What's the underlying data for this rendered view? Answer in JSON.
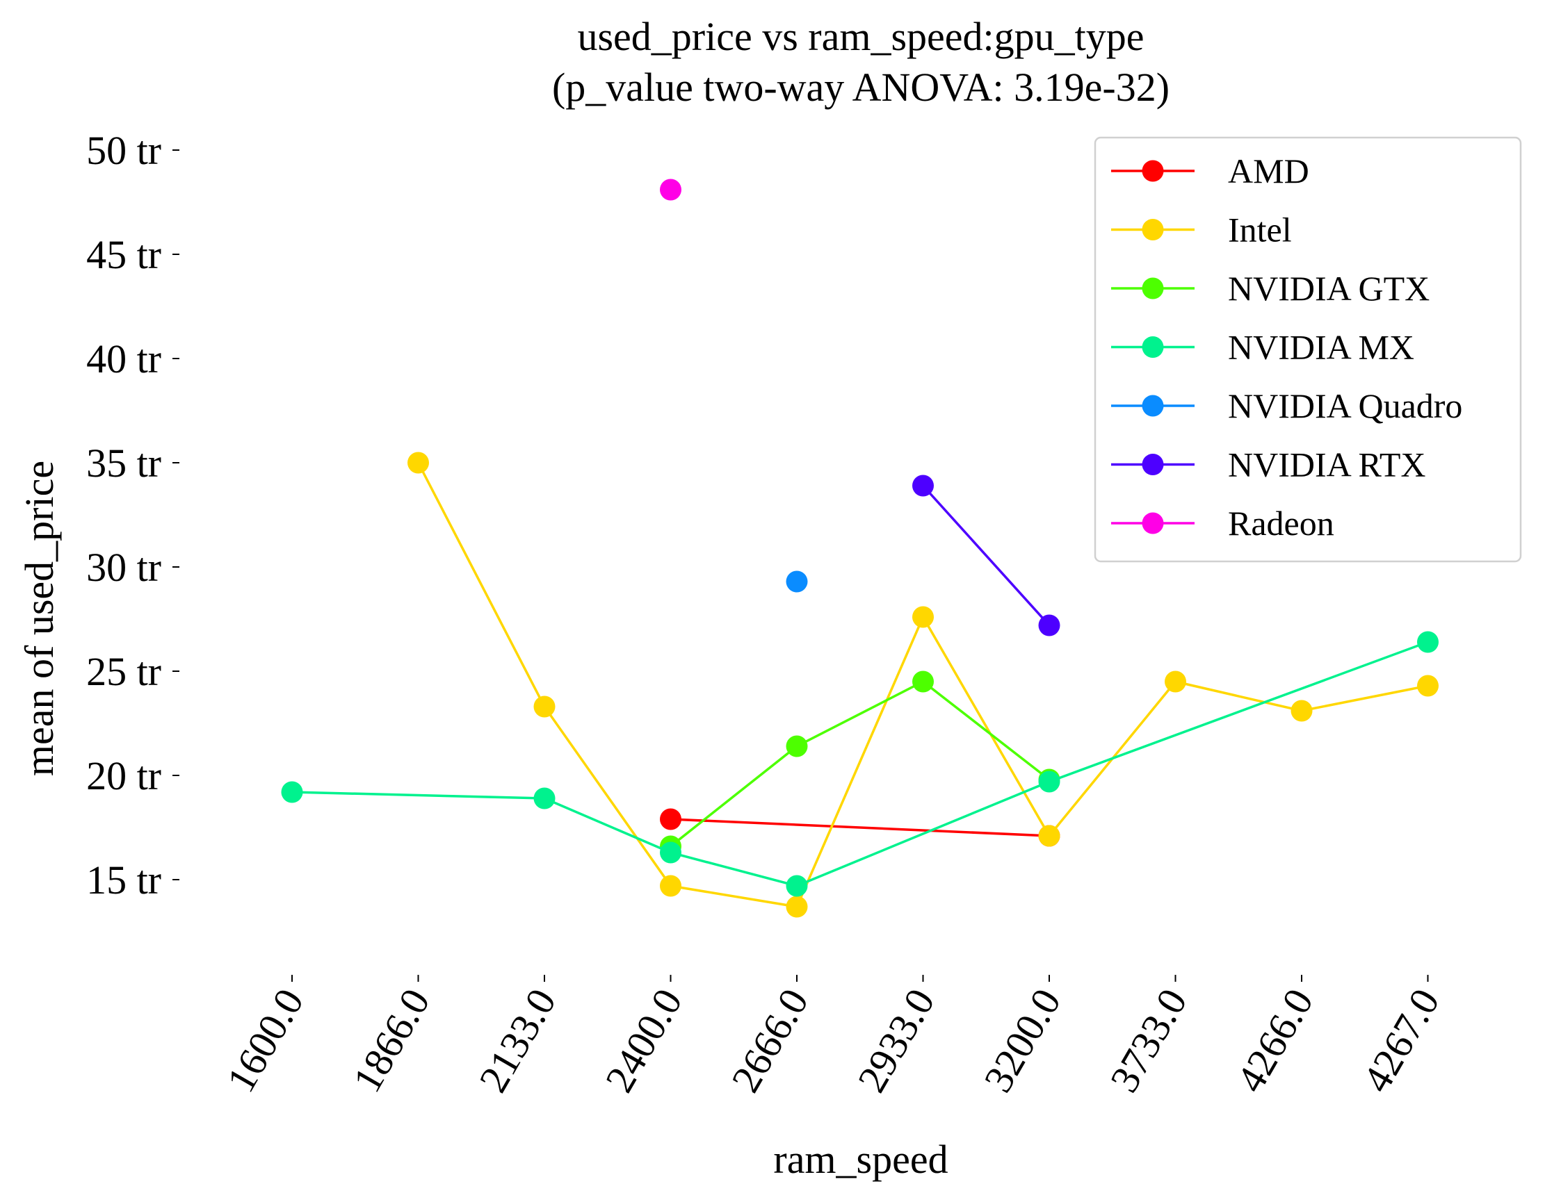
{
  "chart_data": {
    "type": "line",
    "title": "used_price vs ram_speed:gpu_type",
    "subtitle": "(p_value two-way ANOVA: 3.19e-32)",
    "xlabel": "ram_speed",
    "ylabel": "mean of used_price",
    "categories": [
      "1600.0",
      "1866.0",
      "2133.0",
      "2400.0",
      "2666.0",
      "2933.0",
      "3200.0",
      "3733.0",
      "4266.0",
      "4267.0"
    ],
    "ylim": [
      11000000,
      51000000
    ],
    "yticks": [
      15000000,
      20000000,
      25000000,
      30000000,
      35000000,
      40000000,
      45000000,
      50000000
    ],
    "ytick_labels": [
      "15 tr",
      "20 tr",
      "25 tr",
      "30 tr",
      "35 tr",
      "40 tr",
      "45 tr",
      "50 tr"
    ],
    "grid": false,
    "legend_position": "top-right",
    "series": [
      {
        "name": "AMD",
        "color": "#ff0000",
        "points": [
          [
            3,
            17900000
          ],
          [
            6,
            17100000
          ]
        ]
      },
      {
        "name": "Intel",
        "color": "#ffd700",
        "points": [
          [
            1,
            35000000
          ],
          [
            2,
            23300000
          ],
          [
            3,
            14700000
          ],
          [
            4,
            13700000
          ],
          [
            5,
            27600000
          ],
          [
            6,
            17100000
          ],
          [
            7,
            24500000
          ],
          [
            8,
            23100000
          ],
          [
            9,
            24300000
          ]
        ]
      },
      {
        "name": "NVIDIA GTX",
        "color": "#4dff00",
        "points": [
          [
            3,
            16600000
          ],
          [
            4,
            21400000
          ],
          [
            5,
            24500000
          ],
          [
            6,
            19800000
          ]
        ]
      },
      {
        "name": "NVIDIA MX",
        "color": "#00f28e",
        "points": [
          [
            0,
            19200000
          ],
          [
            2,
            18900000
          ],
          [
            3,
            16300000
          ],
          [
            4,
            14700000
          ],
          [
            6,
            19700000
          ],
          [
            9,
            26400000
          ]
        ]
      },
      {
        "name": "NVIDIA Quadro",
        "color": "#0a8cff",
        "points": [
          [
            4,
            29300000
          ]
        ]
      },
      {
        "name": "NVIDIA RTX",
        "color": "#4d00ff",
        "points": [
          [
            5,
            33900000
          ],
          [
            6,
            27200000
          ]
        ]
      },
      {
        "name": "Radeon",
        "color": "#ff00e6",
        "points": [
          [
            3,
            48100000
          ]
        ]
      }
    ]
  }
}
